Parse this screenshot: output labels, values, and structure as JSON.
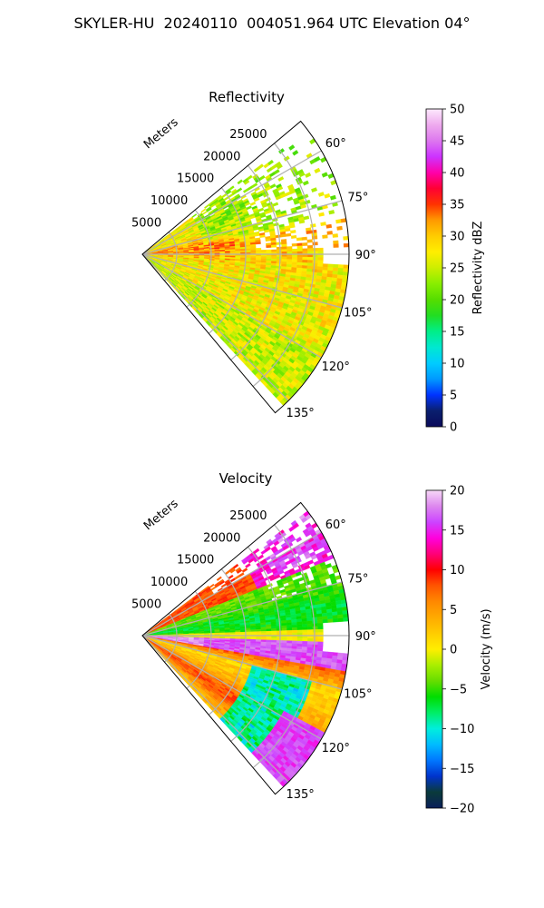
{
  "figure_title": "SKYLER-HU  20240110  004051.964 UTC Elevation 04°",
  "chart_data": [
    {
      "type": "heatmap",
      "projection": "polar-sector",
      "title": "Reflectivity",
      "radial_label": "Meters",
      "radial_ticks": [
        5000,
        10000,
        15000,
        20000,
        25000
      ],
      "angle_ticks": [
        60,
        75,
        90,
        105,
        120,
        135
      ],
      "angle_tick_labels": [
        "60°",
        "75°",
        "90°",
        "105°",
        "120°",
        "135°"
      ],
      "azimuth_range_deg": [
        50,
        140
      ],
      "range_max_m": 30000,
      "colorbar": {
        "label": "Reflectivity dBZ",
        "min": 0,
        "max": 50,
        "ticks": [
          0,
          5,
          10,
          15,
          20,
          25,
          30,
          35,
          40,
          45,
          50
        ]
      },
      "dominant_values_dbz": "mostly 20-35 dBZ, peaks ~35-38 dBZ near 80-95° at 2000-8000 m"
    },
    {
      "type": "heatmap",
      "projection": "polar-sector",
      "title": "Velocity",
      "radial_label": "Meters",
      "radial_ticks": [
        5000,
        10000,
        15000,
        20000,
        25000
      ],
      "angle_ticks": [
        60,
        75,
        90,
        105,
        120,
        135
      ],
      "angle_tick_labels": [
        "60°",
        "75°",
        "90°",
        "105°",
        "120°",
        "135°"
      ],
      "azimuth_range_deg": [
        50,
        140
      ],
      "range_max_m": 30000,
      "colorbar": {
        "label": "Velocity (m/s)",
        "min": -20,
        "max": 20,
        "ticks": [
          -20,
          -15,
          -10,
          -5,
          0,
          5,
          10,
          15,
          20
        ]
      },
      "dominant_values_ms": "~+10 m/s near 60°, ~-5 m/s near 75-85°, ~+15 to +20 m/s near 92-100°, ~0 to +10 m/s 105-135°, ~-10 m/s band at far range 110-130°"
    }
  ]
}
